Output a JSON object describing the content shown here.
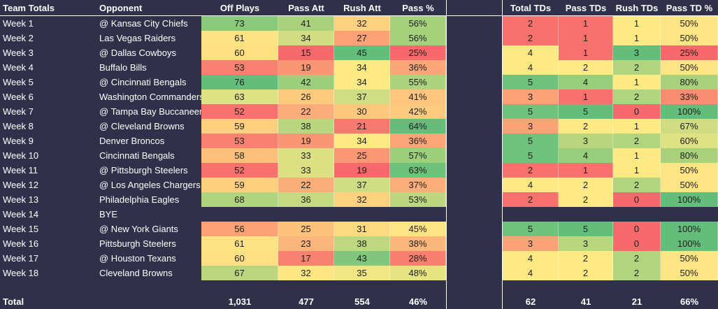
{
  "headers": {
    "team_totals": "Team Totals",
    "opponent": "Opponent",
    "off_plays": "Off Plays",
    "pass_att": "Pass Att",
    "rush_att": "Rush Att",
    "pass_pct": "Pass %",
    "total_tds": "Total TDs",
    "pass_tds": "Pass TDs",
    "rush_tds": "Rush TDs",
    "pass_td_pct": "Pass TD %"
  },
  "rows": [
    {
      "week": "Week 1",
      "opponent": "@ Kansas City Chiefs",
      "off_plays": "73",
      "pass_att": "41",
      "rush_att": "32",
      "pass_pct": "56%",
      "total_tds": "2",
      "pass_tds": "1",
      "rush_tds": "1",
      "pass_td_pct": "50%",
      "colors": [
        "#88c97a",
        "#a9d17c",
        "#fdd17f",
        "#a5d17c",
        "#f8726d",
        "#f8726d",
        "#feea83",
        "#fee583"
      ]
    },
    {
      "week": "Week 2",
      "opponent": "Las Vegas Raiders",
      "off_plays": "61",
      "pass_att": "34",
      "rush_att": "27",
      "pass_pct": "56%",
      "total_tds": "2",
      "pass_tds": "1",
      "rush_tds": "1",
      "pass_td_pct": "50%",
      "colors": [
        "#fee383",
        "#d2dd81",
        "#fba276",
        "#a5d17c",
        "#f8726d",
        "#f8726d",
        "#feea83",
        "#fee583"
      ]
    },
    {
      "week": "Week 3",
      "opponent": "@ Dallas Cowboys",
      "off_plays": "60",
      "pass_att": "15",
      "rush_att": "45",
      "pass_pct": "25%",
      "total_tds": "4",
      "pass_tds": "1",
      "rush_tds": "3",
      "pass_td_pct": "25%",
      "colors": [
        "#fee083",
        "#f8696b",
        "#63be7b",
        "#f8696b",
        "#feea83",
        "#f8726d",
        "#63be7b",
        "#f8696b"
      ]
    },
    {
      "week": "Week 4",
      "opponent": "Buffalo Bills",
      "off_plays": "53",
      "pass_att": "19",
      "rush_att": "34",
      "pass_pct": "36%",
      "total_tds": "4",
      "pass_tds": "2",
      "rush_tds": "2",
      "pass_td_pct": "50%",
      "colors": [
        "#f8816f",
        "#fa9673",
        "#feea83",
        "#fca677",
        "#feea83",
        "#feea83",
        "#b1d47e",
        "#fee583"
      ]
    },
    {
      "week": "Week 5",
      "opponent": "@ Cincinnati Bengals",
      "off_plays": "76",
      "pass_att": "42",
      "rush_att": "34",
      "pass_pct": "55%",
      "total_tds": "5",
      "pass_tds": "4",
      "rush_tds": "1",
      "pass_td_pct": "80%",
      "colors": [
        "#63be7b",
        "#9ccf7b",
        "#feea83",
        "#acd37d",
        "#6ec27b",
        "#98ce7b",
        "#feea83",
        "#a9d17c"
      ]
    },
    {
      "week": "Week 6",
      "opponent": "Washington Commanders",
      "off_plays": "63",
      "pass_att": "26",
      "rush_att": "37",
      "pass_pct": "41%",
      "total_tds": "3",
      "pass_tds": "1",
      "rush_tds": "2",
      "pass_td_pct": "33%",
      "colors": [
        "#dee183",
        "#fdcb7e",
        "#cedd81",
        "#fdc57d",
        "#fba276",
        "#f8726d",
        "#b1d47e",
        "#f98d71"
      ]
    },
    {
      "week": "Week 7",
      "opponent": "@ Tampa Bay Buccaneers",
      "off_plays": "52",
      "pass_att": "22",
      "rush_att": "30",
      "pass_pct": "42%",
      "total_tds": "5",
      "pass_tds": "5",
      "rush_tds": "0",
      "pass_td_pct": "100%",
      "colors": [
        "#f8726d",
        "#fbae79",
        "#fdc77d",
        "#fdcb7e",
        "#6ec27b",
        "#63be7b",
        "#f8696b",
        "#63be7b"
      ]
    },
    {
      "week": "Week 8",
      "opponent": "@ Cleveland Browns",
      "off_plays": "59",
      "pass_att": "38",
      "rush_att": "21",
      "pass_pct": "64%",
      "total_tds": "3",
      "pass_tds": "2",
      "rush_tds": "1",
      "pass_td_pct": "67%",
      "colors": [
        "#fdcf7f",
        "#b8d67e",
        "#f87a6e",
        "#63be7b",
        "#fba276",
        "#feea83",
        "#feea83",
        "#cfdc81"
      ]
    },
    {
      "week": "Week 9",
      "opponent": "Denver Broncos",
      "off_plays": "53",
      "pass_att": "19",
      "rush_att": "34",
      "pass_pct": "36%",
      "total_tds": "5",
      "pass_tds": "3",
      "rush_tds": "2",
      "pass_td_pct": "60%",
      "colors": [
        "#f8816f",
        "#fa9673",
        "#feea83",
        "#fca677",
        "#6ec27b",
        "#b8d67e",
        "#b1d47e",
        "#dfe283"
      ]
    },
    {
      "week": "Week 10",
      "opponent": "Cincinnati Bengals",
      "off_plays": "58",
      "pass_att": "33",
      "rush_att": "25",
      "pass_pct": "57%",
      "total_tds": "5",
      "pass_tds": "4",
      "rush_tds": "1",
      "pass_td_pct": "80%",
      "colors": [
        "#fcc07b",
        "#dbe082",
        "#fa9774",
        "#9ecf7b",
        "#6ec27b",
        "#98ce7b",
        "#feea83",
        "#a9d17c"
      ]
    },
    {
      "week": "Week 11",
      "opponent": "@ Pittsburgh Steelers",
      "off_plays": "52",
      "pass_att": "33",
      "rush_att": "19",
      "pass_pct": "63%",
      "total_tds": "2",
      "pass_tds": "1",
      "rush_tds": "1",
      "pass_td_pct": "50%",
      "colors": [
        "#f8726d",
        "#dbe082",
        "#f8696b",
        "#6cc17b",
        "#f8726d",
        "#f8726d",
        "#feea83",
        "#fee583"
      ]
    },
    {
      "week": "Week 12",
      "opponent": "@ Los Angeles Chargers",
      "off_plays": "59",
      "pass_att": "22",
      "rush_att": "37",
      "pass_pct": "37%",
      "total_tds": "4",
      "pass_tds": "2",
      "rush_tds": "2",
      "pass_td_pct": "50%",
      "colors": [
        "#fdcf7f",
        "#fbae79",
        "#cedd81",
        "#fcae79",
        "#feea83",
        "#feea83",
        "#b1d47e",
        "#fee583"
      ]
    },
    {
      "week": "Week 13",
      "opponent": "Philadelphia Eagles",
      "off_plays": "68",
      "pass_att": "36",
      "rush_att": "32",
      "pass_pct": "53%",
      "total_tds": "2",
      "pass_tds": "2",
      "rush_tds": "0",
      "pass_td_pct": "100%",
      "colors": [
        "#b0d47d",
        "#c5da80",
        "#fdd17f",
        "#bcd77e",
        "#f8726d",
        "#feea83",
        "#f8696b",
        "#63be7b"
      ]
    },
    {
      "week": "Week 14",
      "opponent": "BYE",
      "bye": true
    },
    {
      "week": "Week 15",
      "opponent": "@ New York Giants",
      "off_plays": "56",
      "pass_att": "25",
      "rush_att": "31",
      "pass_pct": "45%",
      "total_tds": "5",
      "pass_tds": "5",
      "rush_tds": "0",
      "pass_td_pct": "100%",
      "colors": [
        "#fba276",
        "#fdc27c",
        "#fdda81",
        "#fee483",
        "#6ec27b",
        "#63be7b",
        "#f8696b",
        "#63be7b"
      ]
    },
    {
      "week": "Week 16",
      "opponent": "Pittsburgh Steelers",
      "off_plays": "61",
      "pass_att": "23",
      "rush_att": "38",
      "pass_pct": "38%",
      "total_tds": "3",
      "pass_tds": "3",
      "rush_tds": "0",
      "pass_td_pct": "100%",
      "colors": [
        "#fee383",
        "#fcb57a",
        "#bed87f",
        "#fdb77a",
        "#fba276",
        "#b8d67e",
        "#f8696b",
        "#63be7b"
      ]
    },
    {
      "week": "Week 17",
      "opponent": "@ Houston Texans",
      "off_plays": "60",
      "pass_att": "17",
      "rush_att": "43",
      "pass_pct": "28%",
      "total_tds": "4",
      "pass_tds": "2",
      "rush_tds": "2",
      "pass_td_pct": "50%",
      "colors": [
        "#fee083",
        "#f98170",
        "#80c67c",
        "#f9806f",
        "#feea83",
        "#feea83",
        "#b1d47e",
        "#fee583"
      ]
    },
    {
      "week": "Week 18",
      "opponent": "Cleveland Browns",
      "off_plays": "67",
      "pass_att": "32",
      "rush_att": "35",
      "pass_pct": "48%",
      "total_tds": "4",
      "pass_tds": "2",
      "rush_tds": "2",
      "pass_td_pct": "50%",
      "colors": [
        "#bbd67e",
        "#fee783",
        "#f0e784",
        "#e5e382",
        "#feea83",
        "#feea83",
        "#b1d47e",
        "#fee583"
      ]
    }
  ],
  "totals": {
    "label": "Total",
    "off_plays": "1,031",
    "pass_att": "477",
    "rush_att": "554",
    "pass_pct": "46%",
    "total_tds": "62",
    "pass_tds": "41",
    "rush_tds": "21",
    "pass_td_pct": "66%"
  },
  "colors": {
    "background": "#30304a",
    "text": "#ffffff",
    "cell_text": "#1c1c1c"
  }
}
